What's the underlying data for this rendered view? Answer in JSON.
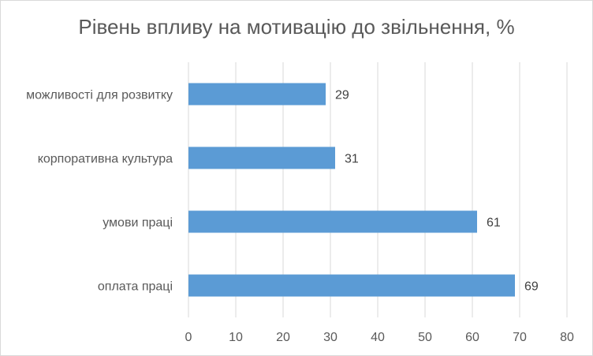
{
  "chart_data": {
    "type": "bar",
    "orientation": "horizontal",
    "title": "Рівень впливу на мотивацію до звільнення, %",
    "categories": [
      "можливості для розвитку",
      "корпоративна культура",
      "умови праці",
      "оплата праці"
    ],
    "values": [
      29,
      31,
      61,
      69
    ],
    "xlim": [
      0,
      80
    ],
    "xticks": [
      0,
      10,
      20,
      30,
      40,
      50,
      60,
      70,
      80
    ],
    "grid": true,
    "data_labels": true,
    "legend": "none",
    "colors": {
      "bar": "#5b9bd5",
      "grid": "#d9d9d9",
      "text": "#595959"
    }
  }
}
